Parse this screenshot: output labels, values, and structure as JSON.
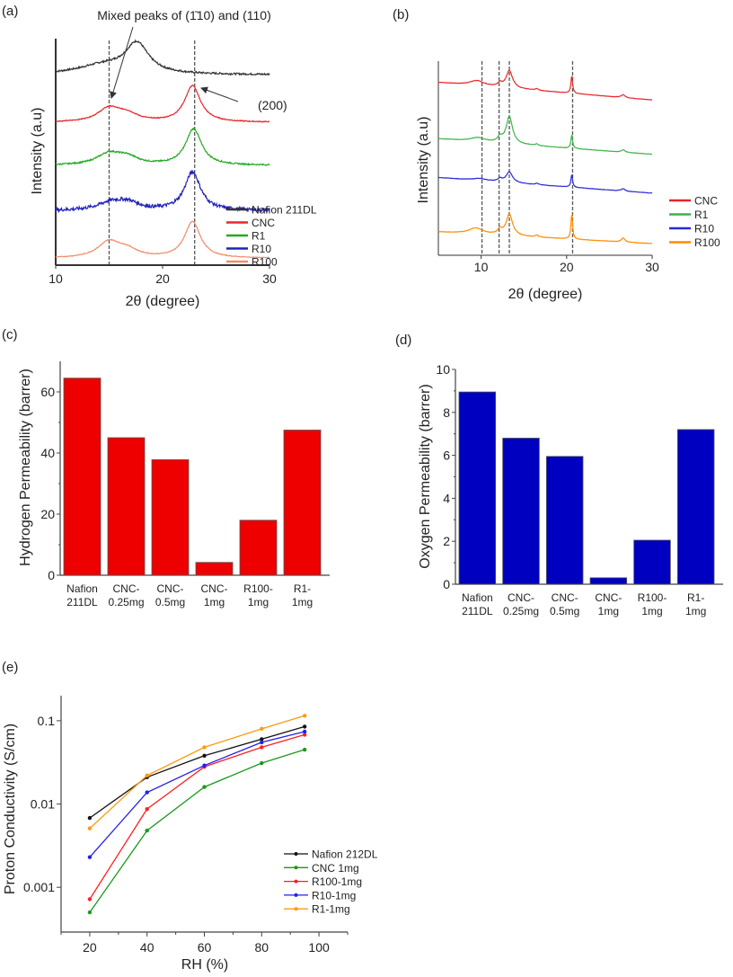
{
  "chart_data": [
    {
      "panel": "(a)",
      "type": "line",
      "title": "",
      "xlabel": "2θ (degree)",
      "ylabel": "Intensity (a.u)",
      "xlim": [
        10,
        30
      ],
      "xticks": [
        10,
        20,
        30
      ],
      "ylim": [
        0,
        100
      ],
      "reference_lines_x": [
        15,
        23
      ],
      "annotations": [
        "Mixed peaks of (1̄10) and (110)",
        "(200)"
      ],
      "legend_position": "bottom-right",
      "series": [
        {
          "name": "Nafion 211DL",
          "color": "#333333",
          "baseline": [
            84,
            84
          ],
          "peaks": [
            [
              17.6,
              13,
              1.3
            ],
            [
              14.5,
              4,
              3
            ]
          ]
        },
        {
          "name": "CNC",
          "color": "#e8262a",
          "baseline": [
            63,
            63
          ],
          "peaks": [
            [
              15,
              6,
              1.3
            ],
            [
              16.7,
              3,
              1.2
            ],
            [
              22.8,
              16,
              0.9
            ]
          ]
        },
        {
          "name": "R1",
          "color": "#22aa22",
          "baseline": [
            44,
            44
          ],
          "peaks": [
            [
              15,
              5,
              1.4
            ],
            [
              16.7,
              3,
              1.2
            ],
            [
              22.9,
              16,
              0.9
            ]
          ]
        },
        {
          "name": "R10",
          "color": "#2222bb",
          "baseline": [
            24,
            24
          ],
          "peaks": [
            [
              15.2,
              3.5,
              1.5
            ],
            [
              16.8,
              3,
              1.2
            ],
            [
              22.8,
              17,
              0.9
            ]
          ]
        },
        {
          "name": "R100",
          "color": "#f28a6a",
          "baseline": [
            3,
            3
          ],
          "peaks": [
            [
              15,
              7,
              1.3
            ],
            [
              16.7,
              3,
              1.2
            ],
            [
              22.8,
              16,
              0.9
            ]
          ]
        }
      ]
    },
    {
      "panel": "(b)",
      "type": "line",
      "xlabel": "2θ (degree)",
      "ylabel": "Intensity (a.u)",
      "xlim": [
        5,
        30
      ],
      "xticks": [
        10,
        20,
        30
      ],
      "ylim": [
        0,
        100
      ],
      "reference_lines_x": [
        10.1,
        12.1,
        13.3,
        20.7
      ],
      "legend_position": "bottom-right",
      "series": [
        {
          "name": "CNC",
          "color": "#e8262a",
          "baseline": [
            89,
            80
          ],
          "peaks": [
            [
              9.5,
              2.5,
              1.0
            ],
            [
              12.2,
              1.8,
              0.3
            ],
            [
              13.3,
              9,
              0.45
            ],
            [
              16.5,
              0.8,
              0.2
            ],
            [
              20.6,
              9,
              0.12
            ],
            [
              26.6,
              1.5,
              0.25
            ]
          ]
        },
        {
          "name": "R1",
          "color": "#3cb44b",
          "baseline": [
            60,
            52
          ],
          "peaks": [
            [
              9.6,
              2,
              1.0
            ],
            [
              12.2,
              2.5,
              0.3
            ],
            [
              13.3,
              14,
              0.45
            ],
            [
              16.5,
              0.8,
              0.2
            ],
            [
              20.6,
              7,
              0.12
            ],
            [
              26.6,
              1.2,
              0.25
            ]
          ]
        },
        {
          "name": "R10",
          "color": "#2a2ad6",
          "baseline": [
            40,
            32
          ],
          "peaks": [
            [
              9.8,
              1,
              1.0
            ],
            [
              12.2,
              1.5,
              0.3
            ],
            [
              13.3,
              5.5,
              0.45
            ],
            [
              16.5,
              0.7,
              0.2
            ],
            [
              20.6,
              6.5,
              0.12
            ],
            [
              26.6,
              1.2,
              0.25
            ]
          ]
        },
        {
          "name": "R100",
          "color": "#ff8c00",
          "baseline": [
            12,
            6
          ],
          "peaks": [
            [
              9.4,
              3,
              1.0
            ],
            [
              12.2,
              2.5,
              0.3
            ],
            [
              13.3,
              11,
              0.45
            ],
            [
              16.5,
              1,
              0.2
            ],
            [
              20.6,
              13,
              0.12
            ],
            [
              26.6,
              2,
              0.25
            ]
          ]
        }
      ]
    },
    {
      "panel": "(c)",
      "type": "bar",
      "xlabel": "",
      "ylabel": "Hydrogen Permeability (barrer)",
      "categories": [
        [
          "Nafion",
          "211DL"
        ],
        [
          "CNC-",
          "0.25mg"
        ],
        [
          "CNC-",
          "0.5mg"
        ],
        [
          "CNC-",
          "1mg"
        ],
        [
          "R100-",
          "1mg"
        ],
        [
          "R1-",
          "1mg"
        ]
      ],
      "values": [
        64.5,
        45,
        37.8,
        4.2,
        18,
        47.5
      ],
      "ylim": [
        0,
        70
      ],
      "yticks": [
        0,
        20,
        40,
        60
      ],
      "color": "#ee0000"
    },
    {
      "panel": "(d)",
      "type": "bar",
      "xlabel": "",
      "ylabel": "Oxygen Permeability (barrer)",
      "categories": [
        [
          "Nafion",
          "211DL"
        ],
        [
          "CNC-",
          "0.25mg"
        ],
        [
          "CNC-",
          "0.5mg"
        ],
        [
          "CNC-",
          "1mg"
        ],
        [
          "R100-",
          "1mg"
        ],
        [
          "R1-",
          "1mg"
        ]
      ],
      "values": [
        8.95,
        6.8,
        5.95,
        0.3,
        2.05,
        7.2
      ],
      "ylim": [
        0,
        10
      ],
      "yticks": [
        0,
        2,
        4,
        6,
        8,
        10
      ],
      "color": "#0000c0"
    },
    {
      "panel": "(e)",
      "type": "line",
      "xlabel": "RH (%)",
      "ylabel": "Proton Conductivity (S/cm)",
      "xlim": [
        10,
        110
      ],
      "xticks": [
        20,
        40,
        60,
        80,
        100
      ],
      "yscale": "log",
      "ylim": [
        0.00029,
        0.2
      ],
      "yticks": [
        0.001,
        0.01,
        0.1
      ],
      "ytick_labels": [
        "0.001",
        "0.01",
        "0.1"
      ],
      "legend_position": "bottom-right",
      "x": [
        20,
        40,
        60,
        80,
        95
      ],
      "series": [
        {
          "name": "Nafion 212DL",
          "color": "#111111",
          "values": [
            0.0068,
            0.021,
            0.038,
            0.06,
            0.085
          ]
        },
        {
          "name": "CNC 1mg",
          "color": "#1a9a1a",
          "values": [
            0.0005,
            0.0048,
            0.016,
            0.031,
            0.045
          ]
        },
        {
          "name": "R100-1mg",
          "color": "#ff2020",
          "values": [
            0.00072,
            0.0087,
            0.028,
            0.048,
            0.068
          ]
        },
        {
          "name": "R10-1mg",
          "color": "#2020ee",
          "values": [
            0.0023,
            0.0138,
            0.029,
            0.055,
            0.074
          ]
        },
        {
          "name": "R1-1mg",
          "color": "#ff9a10",
          "values": [
            0.0051,
            0.022,
            0.048,
            0.08,
            0.115
          ]
        }
      ]
    }
  ]
}
